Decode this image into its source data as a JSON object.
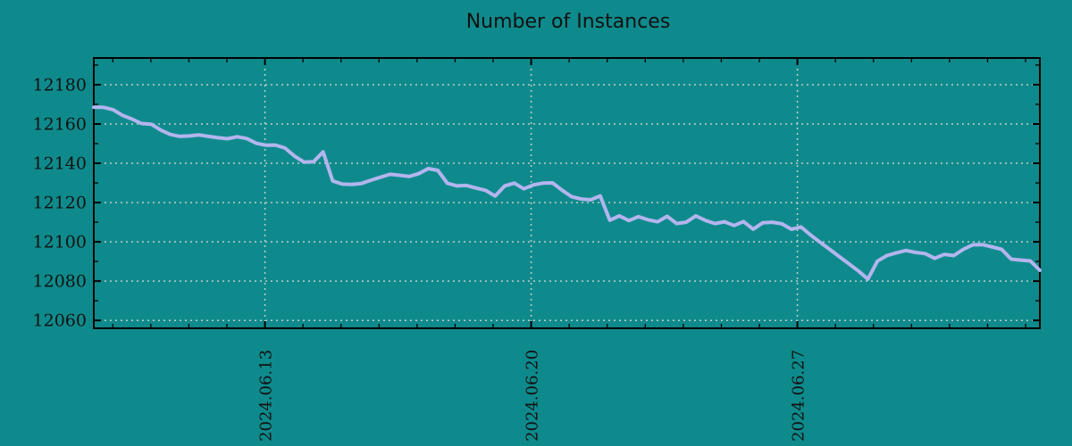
{
  "colors": {
    "background": "#0f8a8c",
    "line": "#b3b5ee",
    "grid": "#c0cdc9",
    "axis": "#000000",
    "text": "#111111"
  },
  "chart_data": {
    "type": "line",
    "title": "Number of Instances",
    "legend": "none",
    "grid": true,
    "x_axis": {
      "tick_labels": [
        "2024.06.13",
        "2024.06.20",
        "2024.06.27"
      ],
      "tick_positions_days": [
        4.5,
        11.5,
        18.5
      ],
      "minor_tick_step_days": 1,
      "first_minor_day": 0.5,
      "span_days": 24.875,
      "start": "2024-06-08 12:00",
      "sample_interval_hours": 6
    },
    "y_axis": {
      "tick_values": [
        12180,
        12160,
        12140,
        12120,
        12100,
        12080,
        12060
      ],
      "minor_tick_step": 10,
      "range": [
        12056,
        12193.6
      ]
    },
    "series": [
      {
        "name": "instances",
        "values": [
          12168.5,
          12168.5,
          12167.3,
          12164.4,
          12162.5,
          12160.2,
          12159.9,
          12156.9,
          12154.7,
          12153.7,
          12153.9,
          12154.4,
          12153.7,
          12153.0,
          12152.5,
          12153.5,
          12152.6,
          12150.2,
          12149.2,
          12149.3,
          12147.8,
          12143.7,
          12140.6,
          12140.8,
          12145.8,
          12131.0,
          12129.4,
          12129.2,
          12129.7,
          12131.4,
          12132.9,
          12134.4,
          12133.9,
          12133.3,
          12134.7,
          12137.3,
          12136.4,
          12129.8,
          12128.5,
          12128.7,
          12127.4,
          12126.2,
          12123.3,
          12128.5,
          12129.9,
          12127.0,
          12129.0,
          12129.9,
          12130.0,
          12126.3,
          12123.0,
          12121.8,
          12121.4,
          12123.4,
          12111.0,
          12113.2,
          12110.8,
          12112.8,
          12111.2,
          12110.2,
          12113.0,
          12109.3,
          12110.0,
          12113.2,
          12110.9,
          12109.3,
          12110.2,
          12108.3,
          12110.3,
          12106.4,
          12109.7,
          12110.0,
          12109.2,
          12106.4,
          12107.6,
          12103.5,
          12099.8,
          12096.2,
          12092.5,
          12088.9,
          12085.2,
          12081.0,
          12090.2,
          12093.0,
          12094.4,
          12095.6,
          12094.6,
          12094.0,
          12091.6,
          12093.6,
          12093.0,
          12096.2,
          12098.5,
          12098.6,
          12097.4,
          12096.2,
          12091.2,
          12090.7,
          12090.3,
          12085.5
        ]
      }
    ]
  }
}
